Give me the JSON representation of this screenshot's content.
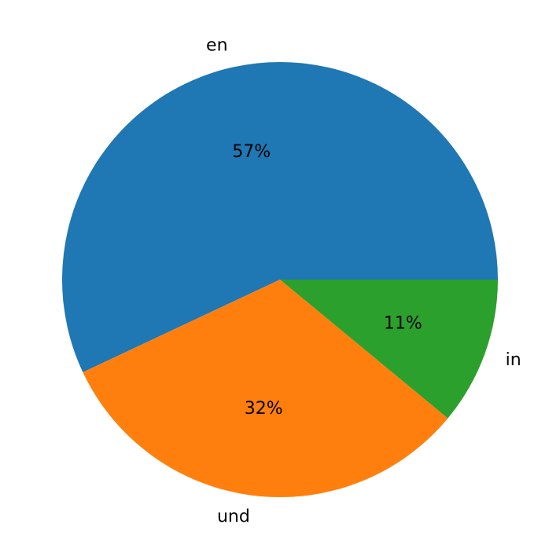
{
  "chart_data": {
    "type": "pie",
    "categories": [
      "en",
      "und",
      "in"
    ],
    "values": [
      57,
      32,
      11
    ],
    "value_labels": [
      "57%",
      "32%",
      "11%"
    ],
    "colors": [
      "#1f77b4",
      "#ff7f0e",
      "#2ca02c"
    ]
  }
}
